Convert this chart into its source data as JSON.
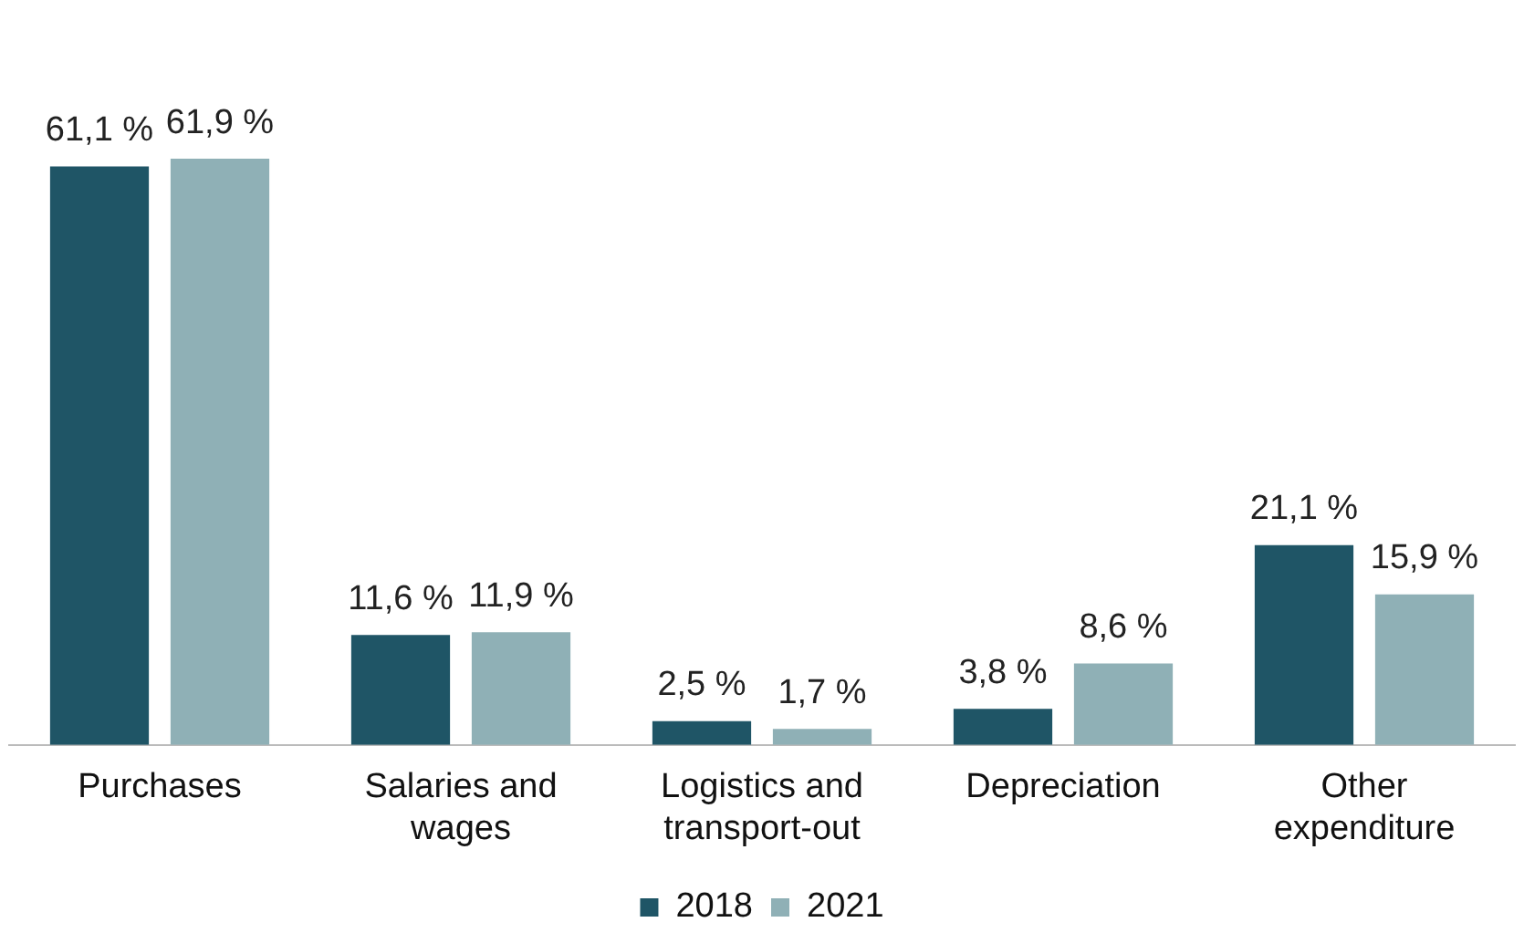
{
  "chart_data": {
    "type": "bar",
    "categories": [
      "Purchases",
      "Salaries and wages",
      "Logistics and transport-out",
      "Depreciation",
      "Other expenditure"
    ],
    "series": [
      {
        "name": "2018",
        "color": "#1f5566",
        "values": [
          61.1,
          11.6,
          2.5,
          3.8,
          21.1
        ],
        "value_labels": [
          "61,1 %",
          "11,6 %",
          "2,5 %",
          "3,8 %",
          "21,1 %"
        ]
      },
      {
        "name": "2021",
        "color": "#8fb0b6",
        "values": [
          61.9,
          11.9,
          1.7,
          8.6,
          15.9
        ],
        "value_labels": [
          "61,9 %",
          "11,9 %",
          "1,7 %",
          "8,6 %",
          "15,9 %"
        ]
      }
    ],
    "legend": "bottom",
    "grid": false,
    "tick_labels": "x"
  }
}
